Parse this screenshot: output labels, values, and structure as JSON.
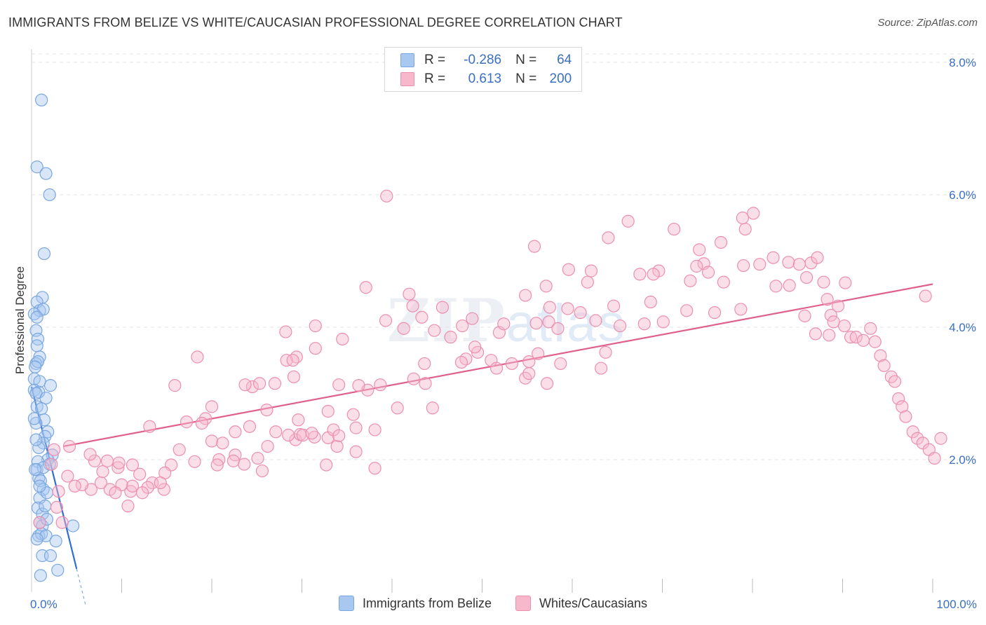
{
  "title": "IMMIGRANTS FROM BELIZE VS WHITE/CAUCASIAN PROFESSIONAL DEGREE CORRELATION CHART",
  "source": "Source: ZipAtlas.com",
  "watermark": {
    "zip": "ZIP",
    "atlas": "atlas"
  },
  "legend": {
    "rows": [
      {
        "r_label": "R =",
        "r_value": "-0.286",
        "n_label": "N =",
        "n_value": "64",
        "color": "#a9c8f0",
        "border": "#7aa7e0"
      },
      {
        "r_label": "R =",
        "r_value": "0.613",
        "n_label": "N =",
        "n_value": "200",
        "color": "#f7b8cc",
        "border": "#ec8fae"
      }
    ]
  },
  "bottom_legend": [
    "Immigrants from Belize",
    "Whites/Caucasians"
  ],
  "chart_data": {
    "type": "scatter",
    "title": "IMMIGRANTS FROM BELIZE VS WHITE/CAUCASIAN PROFESSIONAL DEGREE CORRELATION CHART",
    "xlabel": "",
    "ylabel": "Professional Degree",
    "xlim": [
      0,
      100
    ],
    "ylim": [
      0,
      8.2
    ],
    "x_tick_labels": [
      "0.0%",
      "100.0%"
    ],
    "y_ticks": [
      2,
      4,
      6,
      8
    ],
    "y_tick_labels": [
      "2.0%",
      "4.0%",
      "6.0%",
      "8.0%"
    ],
    "grid": true,
    "series": [
      {
        "name": "Immigrants from Belize",
        "color": "#7aa7e0",
        "fill": "#a9c8f0",
        "trend": {
          "x": [
            0.0,
            5.0
          ],
          "y": [
            3.1,
            0.35
          ],
          "color": "#2f6fd0",
          "dash_to": [
            6.0,
            -0.2
          ]
        },
        "points": [
          [
            1.1,
            7.43
          ],
          [
            0.6,
            6.42
          ],
          [
            1.6,
            6.32
          ],
          [
            2.0,
            6.0
          ],
          [
            1.4,
            5.11
          ],
          [
            1.2,
            4.45
          ],
          [
            0.6,
            4.38
          ],
          [
            0.9,
            4.25
          ],
          [
            1.3,
            4.27
          ],
          [
            0.3,
            4.2
          ],
          [
            0.6,
            4.15
          ],
          [
            0.5,
            3.95
          ],
          [
            0.7,
            3.82
          ],
          [
            0.6,
            3.72
          ],
          [
            0.9,
            3.55
          ],
          [
            0.5,
            3.45
          ],
          [
            0.7,
            3.48
          ],
          [
            0.4,
            3.4
          ],
          [
            0.3,
            3.22
          ],
          [
            0.9,
            3.18
          ],
          [
            2.1,
            3.12
          ],
          [
            0.3,
            3.05
          ],
          [
            0.8,
            3.02
          ],
          [
            0.5,
            3.0
          ],
          [
            1.6,
            2.93
          ],
          [
            0.6,
            2.8
          ],
          [
            1.1,
            2.77
          ],
          [
            1.4,
            2.6
          ],
          [
            0.5,
            2.55
          ],
          [
            1.8,
            2.42
          ],
          [
            1.5,
            2.35
          ],
          [
            1.3,
            2.25
          ],
          [
            0.8,
            2.18
          ],
          [
            2.3,
            2.07
          ],
          [
            1.8,
            2.0
          ],
          [
            0.7,
            1.97
          ],
          [
            2.0,
            1.93
          ],
          [
            0.6,
            1.85
          ],
          [
            1.3,
            1.88
          ],
          [
            0.8,
            1.72
          ],
          [
            1.0,
            1.68
          ],
          [
            1.3,
            1.55
          ],
          [
            0.9,
            1.42
          ],
          [
            1.7,
            1.5
          ],
          [
            0.7,
            1.27
          ],
          [
            1.2,
            1.18
          ],
          [
            0.9,
            1.05
          ],
          [
            1.2,
            1.0
          ],
          [
            4.6,
            1.0
          ],
          [
            0.8,
            0.85
          ],
          [
            1.1,
            0.88
          ],
          [
            1.6,
            0.85
          ],
          [
            0.6,
            0.8
          ],
          [
            2.7,
            0.77
          ],
          [
            1.2,
            0.55
          ],
          [
            2.1,
            0.55
          ],
          [
            2.9,
            0.33
          ],
          [
            1.0,
            0.25
          ],
          [
            0.4,
            1.85
          ],
          [
            0.5,
            2.3
          ],
          [
            1.7,
            1.1
          ],
          [
            0.3,
            2.62
          ],
          [
            0.9,
            1.6
          ],
          [
            1.5,
            1.3
          ]
        ]
      },
      {
        "name": "Whites/Caucasians",
        "color": "#ec8fae",
        "fill": "#f7b8cc",
        "trend": {
          "x": [
            3.5,
            100.0
          ],
          "y": [
            2.2,
            4.65
          ],
          "color": "#e0608c"
        },
        "points": [
          [
            39.4,
            5.98
          ],
          [
            55.8,
            5.22
          ],
          [
            66.2,
            5.6
          ],
          [
            79.2,
            5.48
          ],
          [
            76.5,
            5.28
          ],
          [
            78.9,
            5.65
          ],
          [
            80.1,
            5.72
          ],
          [
            69.6,
            4.85
          ],
          [
            71.3,
            5.48
          ],
          [
            74.1,
            5.17
          ],
          [
            74.6,
            4.96
          ],
          [
            75.1,
            4.83
          ],
          [
            76.8,
            4.68
          ],
          [
            79.0,
            4.93
          ],
          [
            80.8,
            4.95
          ],
          [
            82.3,
            5.05
          ],
          [
            84.0,
            4.98
          ],
          [
            85.2,
            4.95
          ],
          [
            86.5,
            4.97
          ],
          [
            87.2,
            5.05
          ],
          [
            82.6,
            4.62
          ],
          [
            84.1,
            4.63
          ],
          [
            86.0,
            4.75
          ],
          [
            87.9,
            4.68
          ],
          [
            90.3,
            4.67
          ],
          [
            73.1,
            4.7
          ],
          [
            73.8,
            4.92
          ],
          [
            69.0,
            4.8
          ],
          [
            67.5,
            4.8
          ],
          [
            64.0,
            5.35
          ],
          [
            62.1,
            4.85
          ],
          [
            61.7,
            4.68
          ],
          [
            59.6,
            4.87
          ],
          [
            57.1,
            4.62
          ],
          [
            54.8,
            4.48
          ],
          [
            37.1,
            4.6
          ],
          [
            42.3,
            4.32
          ],
          [
            41.9,
            4.5
          ],
          [
            45.6,
            4.3
          ],
          [
            43.3,
            4.15
          ],
          [
            41.3,
            3.98
          ],
          [
            39.3,
            4.1
          ],
          [
            48.9,
            4.13
          ],
          [
            47.8,
            4.02
          ],
          [
            44.7,
            3.95
          ],
          [
            56.0,
            4.06
          ],
          [
            57.4,
            4.08
          ],
          [
            59.5,
            4.28
          ],
          [
            60.9,
            4.22
          ],
          [
            62.6,
            4.1
          ],
          [
            64.6,
            4.32
          ],
          [
            65.3,
            4.02
          ],
          [
            68.0,
            4.05
          ],
          [
            68.7,
            4.38
          ],
          [
            70.1,
            4.08
          ],
          [
            72.7,
            4.25
          ],
          [
            75.8,
            4.22
          ],
          [
            78.7,
            4.27
          ],
          [
            85.8,
            4.17
          ],
          [
            88.3,
            4.42
          ],
          [
            88.7,
            4.18
          ],
          [
            89.5,
            4.32
          ],
          [
            90.2,
            4.02
          ],
          [
            89.0,
            4.08
          ],
          [
            99.2,
            4.47
          ],
          [
            57.5,
            4.3
          ],
          [
            58.4,
            3.98
          ],
          [
            46.5,
            3.85
          ],
          [
            49.5,
            3.62
          ],
          [
            51.0,
            3.5
          ],
          [
            51.6,
            3.38
          ],
          [
            53.3,
            3.45
          ],
          [
            55.2,
            3.48
          ],
          [
            56.2,
            3.6
          ],
          [
            58.7,
            3.45
          ],
          [
            63.7,
            3.62
          ],
          [
            63.2,
            3.38
          ],
          [
            54.8,
            3.23
          ],
          [
            57.2,
            3.15
          ],
          [
            55.2,
            3.3
          ],
          [
            49.2,
            3.7
          ],
          [
            48.2,
            3.52
          ],
          [
            47.7,
            3.47
          ],
          [
            51.9,
            3.92
          ],
          [
            52.4,
            4.05
          ],
          [
            43.6,
            3.45
          ],
          [
            42.4,
            3.22
          ],
          [
            44.5,
            2.78
          ],
          [
            43.7,
            3.15
          ],
          [
            40.6,
            2.78
          ],
          [
            37.3,
            3.05
          ],
          [
            38.7,
            3.13
          ],
          [
            36.3,
            3.12
          ],
          [
            36.0,
            2.48
          ],
          [
            38.1,
            2.45
          ],
          [
            34.1,
            3.13
          ],
          [
            35.7,
            2.68
          ],
          [
            32.9,
            2.73
          ],
          [
            32.9,
            2.33
          ],
          [
            32.7,
            1.92
          ],
          [
            29.6,
            2.6
          ],
          [
            29.1,
            3.25
          ],
          [
            29.4,
            3.55
          ],
          [
            28.3,
            3.5
          ],
          [
            28.2,
            3.93
          ],
          [
            31.5,
            4.02
          ],
          [
            31.5,
            3.68
          ],
          [
            34.5,
            3.82
          ],
          [
            29.3,
            2.3
          ],
          [
            27.1,
            2.42
          ],
          [
            26.1,
            2.75
          ],
          [
            29.0,
            3.5
          ],
          [
            24.5,
            3.1
          ],
          [
            25.3,
            3.15
          ],
          [
            23.7,
            3.13
          ],
          [
            27.0,
            3.15
          ],
          [
            24.2,
            2.5
          ],
          [
            22.6,
            2.42
          ],
          [
            26.2,
            2.2
          ],
          [
            25.1,
            2.02
          ],
          [
            28.5,
            2.37
          ],
          [
            29.8,
            2.38
          ],
          [
            30.1,
            2.37
          ],
          [
            33.5,
            2.45
          ],
          [
            33.9,
            2.2
          ],
          [
            31.4,
            2.34
          ],
          [
            31.1,
            2.4
          ],
          [
            34.1,
            2.36
          ],
          [
            38.1,
            1.87
          ],
          [
            36.0,
            2.12
          ],
          [
            15.9,
            3.12
          ],
          [
            18.4,
            3.55
          ],
          [
            19.3,
            2.62
          ],
          [
            20.0,
            2.8
          ],
          [
            17.2,
            2.57
          ],
          [
            20.0,
            2.28
          ],
          [
            21.2,
            2.25
          ],
          [
            22.6,
            2.07
          ],
          [
            20.8,
            2.0
          ],
          [
            22.4,
            1.98
          ],
          [
            23.6,
            1.93
          ],
          [
            25.6,
            1.83
          ],
          [
            20.6,
            1.92
          ],
          [
            18.1,
            1.97
          ],
          [
            16.4,
            2.15
          ],
          [
            15.5,
            1.92
          ],
          [
            14.8,
            1.8
          ],
          [
            13.4,
            1.65
          ],
          [
            12.0,
            1.78
          ],
          [
            14.7,
            1.55
          ],
          [
            12.9,
            1.58
          ],
          [
            11.0,
            1.52
          ],
          [
            11.2,
            1.6
          ],
          [
            10.0,
            1.62
          ],
          [
            8.7,
            1.55
          ],
          [
            9.3,
            1.5
          ],
          [
            7.7,
            1.65
          ],
          [
            6.6,
            1.55
          ],
          [
            5.6,
            1.62
          ],
          [
            7.9,
            1.82
          ],
          [
            11.2,
            1.92
          ],
          [
            9.6,
            1.88
          ],
          [
            8.4,
            1.98
          ],
          [
            7.0,
            1.98
          ],
          [
            4.0,
            1.75
          ],
          [
            2.2,
            1.93
          ],
          [
            4.8,
            1.6
          ],
          [
            3.0,
            1.52
          ],
          [
            2.8,
            1.28
          ],
          [
            0.9,
            1.05
          ],
          [
            3.4,
            1.05
          ],
          [
            10.7,
            1.3
          ],
          [
            2.5,
            2.15
          ],
          [
            6.5,
            2.08
          ],
          [
            13.1,
            2.5
          ],
          [
            18.9,
            2.55
          ],
          [
            14.3,
            1.65
          ],
          [
            12.3,
            1.5
          ],
          [
            9.7,
            1.95
          ],
          [
            4.2,
            2.2
          ],
          [
            87.0,
            3.9
          ],
          [
            88.5,
            3.88
          ],
          [
            90.9,
            3.85
          ],
          [
            91.5,
            3.85
          ],
          [
            92.3,
            3.8
          ],
          [
            93.1,
            3.98
          ],
          [
            93.6,
            3.78
          ],
          [
            94.2,
            3.57
          ],
          [
            94.6,
            3.42
          ],
          [
            95.4,
            3.25
          ],
          [
            95.8,
            3.18
          ],
          [
            96.2,
            2.92
          ],
          [
            96.6,
            2.8
          ],
          [
            97.0,
            2.65
          ],
          [
            97.8,
            2.42
          ],
          [
            98.3,
            2.32
          ],
          [
            98.9,
            2.25
          ],
          [
            99.6,
            2.15
          ],
          [
            100.2,
            2.02
          ],
          [
            100.9,
            2.32
          ]
        ]
      }
    ]
  }
}
